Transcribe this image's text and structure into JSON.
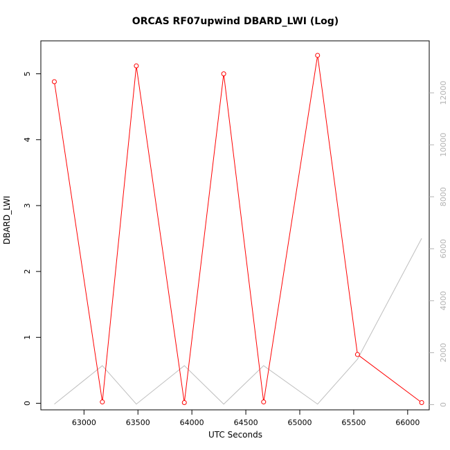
{
  "chart_data": {
    "type": "line",
    "title": "ORCAS RF07upwind DBARD_LWI (Log)",
    "xlabel": "UTC Seconds",
    "ylabel": "DBARD_LWI",
    "y2label": "",
    "xlim": [
      62600,
      66200
    ],
    "ylim": [
      -0.1,
      5.5
    ],
    "y2lim": [
      -200,
      14000
    ],
    "x_ticks": [
      63000,
      63500,
      64000,
      64500,
      65000,
      65500,
      66000
    ],
    "y_ticks": [
      0,
      1,
      2,
      3,
      4,
      5
    ],
    "y2_ticks": [
      0,
      2000,
      4000,
      6000,
      8000,
      10000,
      12000
    ],
    "grid": false,
    "series": [
      {
        "axis": "left",
        "color": "#ff0000",
        "markers": "open-circle",
        "x": [
          62725,
          63170,
          63485,
          63930,
          64295,
          64665,
          65165,
          65535,
          66130
        ],
        "y": [
          4.88,
          0.02,
          5.12,
          0.01,
          5.0,
          0.02,
          5.28,
          0.74,
          0.01
        ]
      },
      {
        "axis": "right",
        "color": "#bebebe",
        "markers": "none",
        "x": [
          62725,
          63170,
          63485,
          63930,
          64295,
          64665,
          65165,
          65535,
          66130
        ],
        "y": [
          20,
          1500,
          20,
          1500,
          20,
          1500,
          20,
          1750,
          6400
        ]
      }
    ]
  }
}
